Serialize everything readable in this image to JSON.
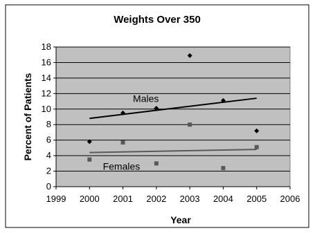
{
  "chart_data": {
    "type": "scatter",
    "title": "Weights Over 350",
    "xlabel": "Year",
    "ylabel": "Percent of Patients",
    "xlim": [
      1999,
      2006
    ],
    "ylim": [
      0,
      18
    ],
    "x_ticks": [
      "1999",
      "2000",
      "2001",
      "2002",
      "2003",
      "2004",
      "2005",
      "2006"
    ],
    "y_ticks": [
      "0",
      "2",
      "4",
      "6",
      "8",
      "10",
      "12",
      "14",
      "16",
      "18"
    ],
    "grid": "horizontal",
    "plot_background": "#c0c0c0",
    "series": [
      {
        "name": "Males",
        "marker": "diamond",
        "color": "#000000",
        "x": [
          2000,
          2001,
          2002,
          2003,
          2004,
          2005
        ],
        "y": [
          5.8,
          9.5,
          10.1,
          16.9,
          11.1,
          7.2
        ],
        "trendline": {
          "x": [
            2000,
            2005
          ],
          "y": [
            8.8,
            11.4
          ],
          "color": "#000000"
        }
      },
      {
        "name": "Females",
        "marker": "square",
        "color": "#595959",
        "x": [
          2000,
          2001,
          2002,
          2003,
          2004,
          2005
        ],
        "y": [
          3.5,
          5.7,
          3.0,
          8.0,
          2.4,
          5.1
        ],
        "trendline": {
          "x": [
            2000,
            2005
          ],
          "y": [
            4.4,
            4.8
          ],
          "color": "#595959"
        }
      }
    ]
  }
}
